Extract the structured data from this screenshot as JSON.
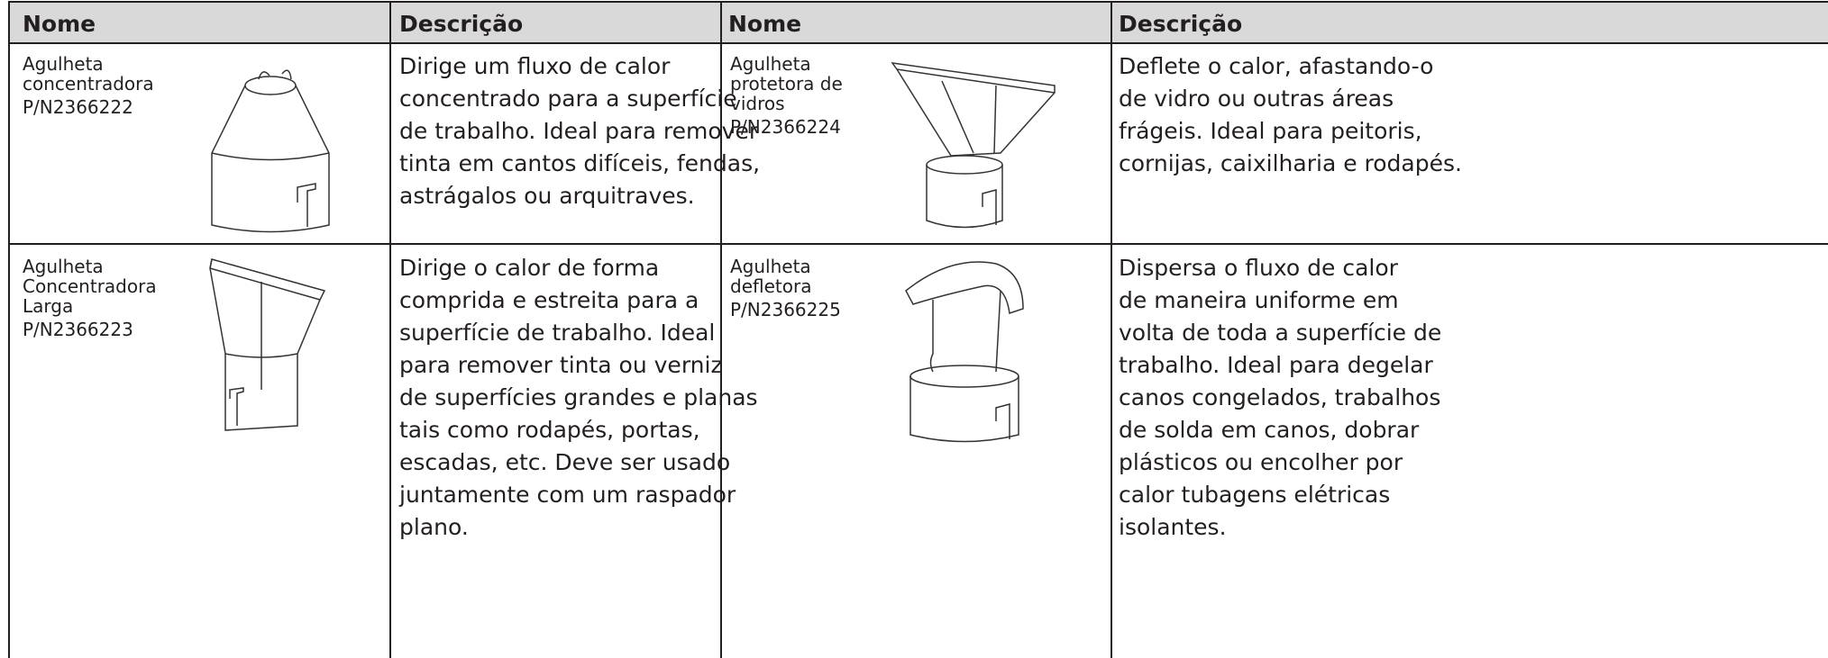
{
  "table": {
    "header": [
      "Nome",
      "Descrição",
      "Nome",
      "Descrição"
    ],
    "rows": [
      [
        {
          "name": [
            "Agulheta",
            "concentradora",
            "P/N2366222"
          ],
          "description": [
            "Dirige um fluxo de calor",
            "concentrado para a superfície",
            "de trabalho. Ideal para remover",
            "tinta em cantos difíceis, fendas,",
            "astrágalos ou arquitraves."
          ]
        },
        {
          "name": [
            "Agulheta",
            "protetora de",
            "vidros",
            "P/N2366224"
          ],
          "description": [
            "Deflete o calor, afastando-o",
            "de vidro ou outras áreas",
            "frágeis. Ideal para peitoris,",
            "cornijas, caixilharia e rodapés."
          ]
        }
      ],
      [
        {
          "name": [
            "Agulheta",
            "Concentradora",
            "Larga",
            "P/N2366223"
          ],
          "description": [
            "Dirige o calor de forma",
            "comprida e estreita para a",
            "superfície de trabalho. Ideal",
            "para remover tinta ou verniz",
            "de superfícies grandes e planas",
            "tais como rodapés, portas,",
            "escadas, etc. Deve ser usado",
            "juntamente com um raspador",
            "plano."
          ]
        },
        {
          "name": [
            "Agulheta",
            "defletora",
            "P/N2366225"
          ],
          "description": [
            "Dispersa o fluxo de calor",
            "de maneira uniforme em",
            "volta de toda a superfície de",
            "trabalho. Ideal para degelar",
            "canos congelados, trabalhos",
            "de solda em canos, dobrar",
            "plásticos ou encolher por",
            "calor tubagens elétricas",
            "isolantes."
          ]
        }
      ]
    ]
  }
}
